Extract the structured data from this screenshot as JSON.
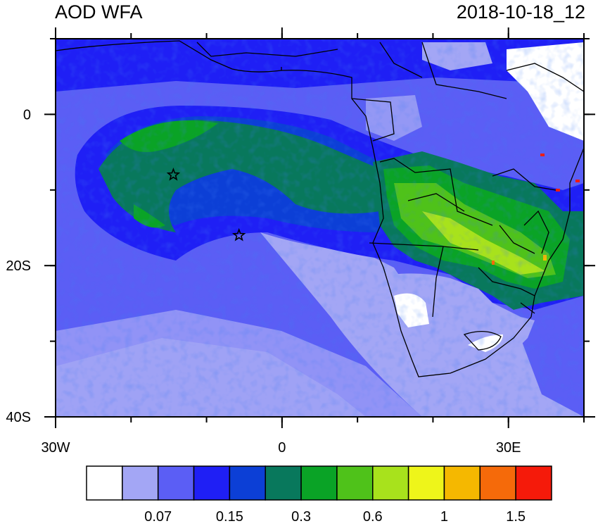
{
  "title_left": "AOD WFA",
  "title_right": "2018-10-18_12",
  "y_axis": {
    "ticks": [
      {
        "label": "0",
        "lat": 0
      },
      {
        "label": "20S",
        "lat": -20
      },
      {
        "label": "40S",
        "lat": -40
      }
    ],
    "range_lat": [
      -40,
      10
    ]
  },
  "x_axis": {
    "ticks": [
      {
        "label": "30W",
        "lon": -30
      },
      {
        "label": "0",
        "lon": 0
      },
      {
        "label": "30E",
        "lon": 30
      }
    ],
    "range_lon": [
      -30,
      40
    ]
  },
  "colorbar": {
    "colors": [
      "#ffffff",
      "#a3a6f5",
      "#5b5ef5",
      "#1f1ff5",
      "#0c3fd6",
      "#08785c",
      "#0aa326",
      "#4fc21a",
      "#a8e21c",
      "#eef51a",
      "#f5b800",
      "#f56a0a",
      "#f51a0a"
    ],
    "labels": [
      "0.07",
      "0.15",
      "0.3",
      "0.6",
      "1",
      "1.5"
    ]
  },
  "markers": [
    {
      "name": "star-1",
      "lon": -14.4,
      "lat": -8
    },
    {
      "name": "star-2",
      "lon": -5.7,
      "lat": -16
    }
  ]
}
